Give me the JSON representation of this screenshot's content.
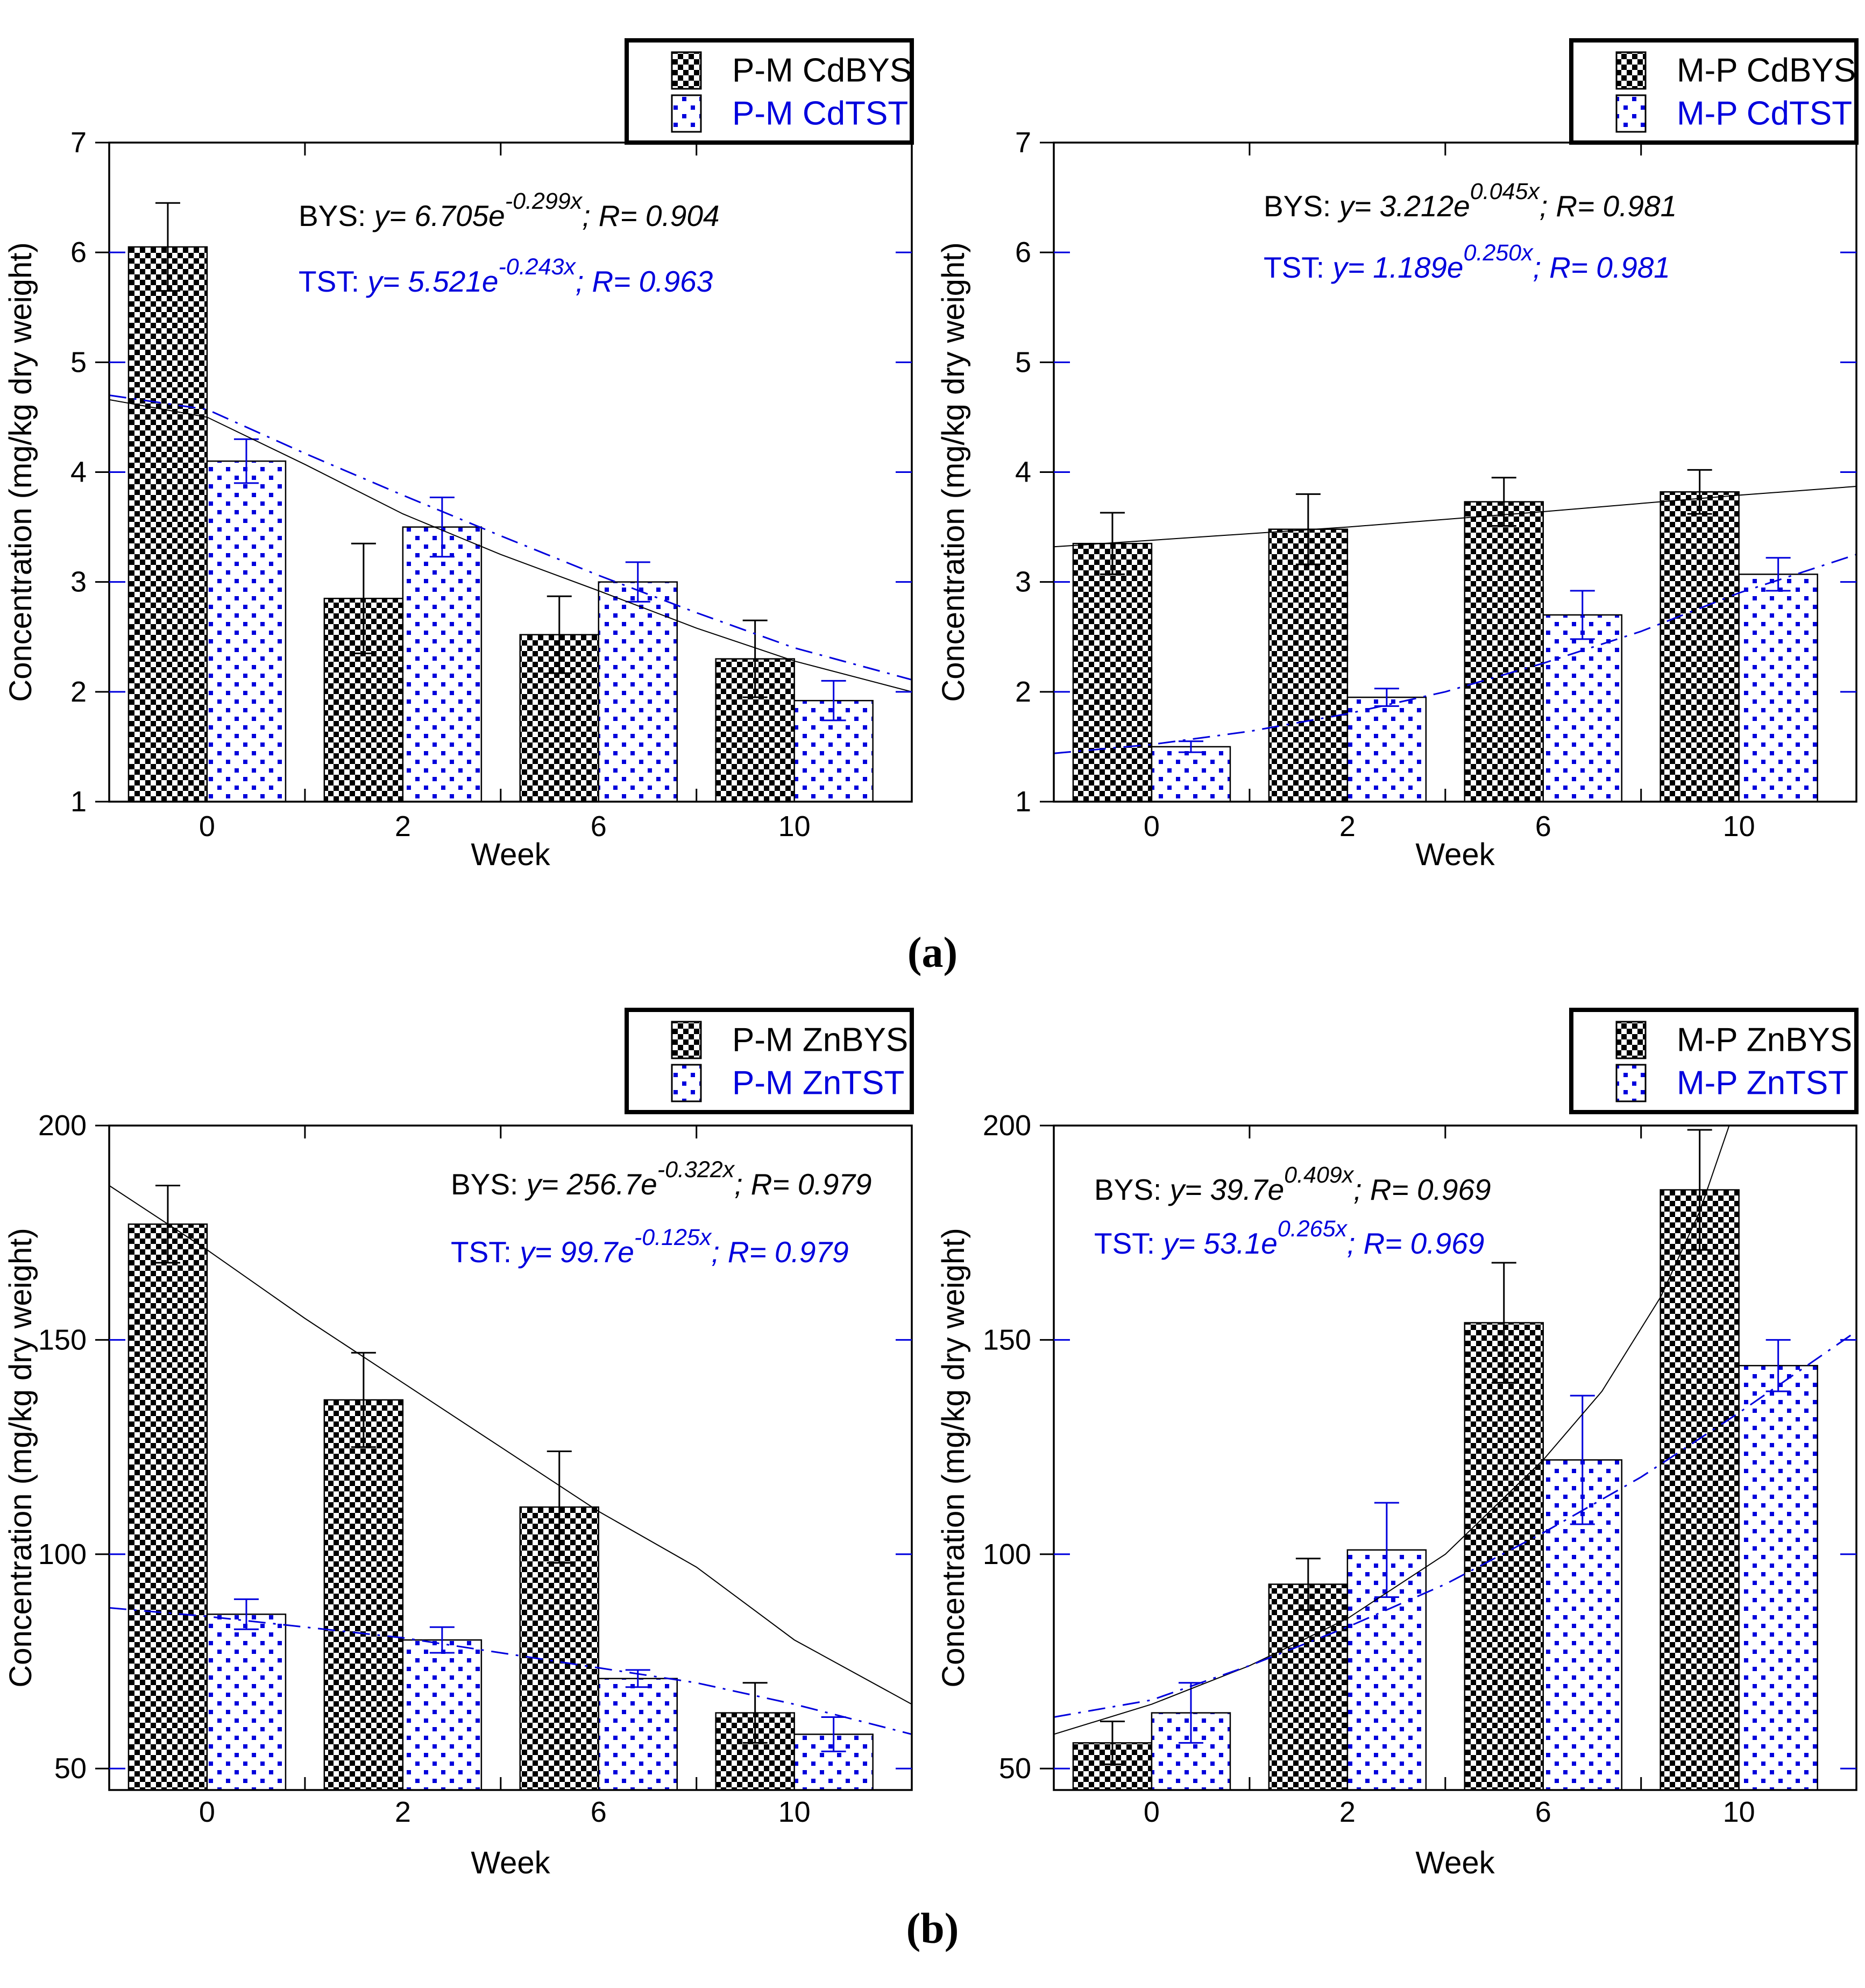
{
  "figure": {
    "panel_a_label": "(a)",
    "panel_b_label": "(b)"
  },
  "colors": {
    "bys": "#000000",
    "tst": "#0000dd"
  },
  "chart_data": [
    {
      "id": "pm-cd",
      "type": "bar",
      "ylabel": "Concentration (mg/kg dry weight)",
      "xlabel": "Week",
      "ylim": [
        1,
        7
      ],
      "yticks": [
        1,
        2,
        3,
        4,
        5,
        6,
        7
      ],
      "categories": [
        "0",
        "2",
        "6",
        "10"
      ],
      "legend_position": "top-right",
      "grid": false,
      "series": [
        {
          "key": "bys",
          "name": "P-M CdBYS",
          "color": "#000000",
          "pattern": "checker",
          "values": [
            6.05,
            2.85,
            2.52,
            2.3
          ],
          "errors": [
            0.4,
            0.5,
            0.35,
            0.35
          ],
          "trend_style": "solid",
          "trend": [
            [
              -0.5,
              4.66
            ],
            [
              0,
              4.5
            ],
            [
              0.5,
              4.07
            ],
            [
              1,
              3.62
            ],
            [
              1.5,
              3.25
            ],
            [
              2,
              2.92
            ],
            [
              2.5,
              2.58
            ],
            [
              3,
              2.28
            ],
            [
              3.6,
              2.0
            ]
          ]
        },
        {
          "key": "tst",
          "name": "P-M CdTST",
          "color": "#0000dd",
          "pattern": "dots",
          "values": [
            4.1,
            3.5,
            3.0,
            1.92
          ],
          "errors": [
            0.2,
            0.27,
            0.18,
            0.18
          ],
          "trend_style": "dashdot",
          "trend": [
            [
              -0.5,
              4.7
            ],
            [
              0,
              4.57
            ],
            [
              0.5,
              4.17
            ],
            [
              1,
              3.79
            ],
            [
              1.5,
              3.42
            ],
            [
              2,
              3.06
            ],
            [
              2.5,
              2.72
            ],
            [
              3,
              2.4
            ],
            [
              3.6,
              2.11
            ]
          ]
        }
      ],
      "equations": [
        {
          "prefix": "BYS:  ",
          "body": "y= 6.705e",
          "exp": "-0.299x",
          "suffix": "; R= 0.904",
          "color": "#000000"
        },
        {
          "prefix": "TST:  ",
          "body": "y= 5.521e",
          "exp": "-0.243x",
          "suffix": "; R= 0.963",
          "color": "#0000dd"
        }
      ]
    },
    {
      "id": "mp-cd",
      "type": "bar",
      "ylabel": "Concentration (mg/kg dry weight)",
      "xlabel": "Week",
      "ylim": [
        1,
        7
      ],
      "yticks": [
        1,
        2,
        3,
        4,
        5,
        6,
        7
      ],
      "categories": [
        "0",
        "2",
        "6",
        "10"
      ],
      "legend_position": "top-right",
      "grid": false,
      "series": [
        {
          "key": "bys",
          "name": "M-P CdBYS",
          "color": "#000000",
          "pattern": "checker",
          "values": [
            3.35,
            3.48,
            3.73,
            3.82
          ],
          "errors": [
            0.28,
            0.32,
            0.22,
            0.2
          ],
          "trend_style": "solid",
          "trend": [
            [
              -0.5,
              3.32
            ],
            [
              0,
              3.38
            ],
            [
              1,
              3.5
            ],
            [
              2,
              3.64
            ],
            [
              3,
              3.79
            ],
            [
              3.6,
              3.87
            ]
          ]
        },
        {
          "key": "tst",
          "name": "M-P CdTST",
          "color": "#0000dd",
          "pattern": "dots",
          "values": [
            1.5,
            1.95,
            2.7,
            3.07
          ],
          "errors": [
            0.05,
            0.08,
            0.22,
            0.15
          ],
          "trend_style": "dashdot",
          "trend": [
            [
              -0.5,
              1.44
            ],
            [
              0,
              1.52
            ],
            [
              0.5,
              1.64
            ],
            [
              1,
              1.8
            ],
            [
              1.5,
              2.0
            ],
            [
              2,
              2.26
            ],
            [
              2.5,
              2.55
            ],
            [
              3,
              2.9
            ],
            [
              3.6,
              3.25
            ]
          ]
        }
      ],
      "equations": [
        {
          "prefix": "BYS:  ",
          "body": "y= 3.212e",
          "exp": "0.045x",
          "suffix": "; R= 0.981",
          "color": "#000000"
        },
        {
          "prefix": "TST:  ",
          "body": "y= 1.189e",
          "exp": "0.250x",
          "suffix": "; R= 0.981",
          "color": "#0000dd"
        }
      ]
    },
    {
      "id": "pm-zn",
      "type": "bar",
      "ylabel": "Concentration (mg/kg dry weight)",
      "xlabel": "Week",
      "ylim": [
        45,
        200
      ],
      "yticks": [
        50,
        100,
        150,
        200
      ],
      "categories": [
        "0",
        "2",
        "6",
        "10"
      ],
      "legend_position": "top-right",
      "grid": false,
      "series": [
        {
          "key": "bys",
          "name": "P-M ZnBYS",
          "color": "#000000",
          "pattern": "checker",
          "values": [
            177,
            136,
            111,
            63
          ],
          "errors": [
            9,
            11,
            13,
            7
          ],
          "trend_style": "solid",
          "trend": [
            [
              -0.5,
              186
            ],
            [
              0,
              171
            ],
            [
              0.5,
              155
            ],
            [
              1,
              140
            ],
            [
              1.5,
              125
            ],
            [
              2,
              110
            ],
            [
              2.5,
              97
            ],
            [
              3,
              80
            ],
            [
              3.6,
              65
            ]
          ]
        },
        {
          "key": "tst",
          "name": "P-M ZnTST",
          "color": "#0000dd",
          "pattern": "dots",
          "values": [
            86,
            80,
            71,
            58
          ],
          "errors": [
            3.5,
            3,
            2,
            4
          ],
          "trend_style": "dashdot",
          "trend": [
            [
              -0.5,
              87.5
            ],
            [
              0,
              85.5
            ],
            [
              0.5,
              83
            ],
            [
              1,
              80.5
            ],
            [
              1.5,
              77
            ],
            [
              2,
              73.5
            ],
            [
              2.5,
              70
            ],
            [
              3,
              65
            ],
            [
              3.6,
              58
            ]
          ]
        }
      ],
      "equations": [
        {
          "prefix": "BYS:  ",
          "body": "y= 256.7e",
          "exp": "-0.322x",
          "suffix": "; R= 0.979",
          "color": "#000000"
        },
        {
          "prefix": "TST:  ",
          "body": "y= 99.7e",
          "exp": "-0.125x",
          "suffix": "; R= 0.979",
          "color": "#0000dd"
        }
      ]
    },
    {
      "id": "mp-zn",
      "type": "bar",
      "ylabel": "Concentration (mg/kg dry weight)",
      "xlabel": "Week",
      "ylim": [
        45,
        200
      ],
      "yticks": [
        50,
        100,
        150,
        200
      ],
      "categories": [
        "0",
        "2",
        "6",
        "10"
      ],
      "legend_position": "top-right",
      "grid": false,
      "series": [
        {
          "key": "bys",
          "name": "M-P ZnBYS",
          "color": "#000000",
          "pattern": "checker",
          "values": [
            56,
            93,
            154,
            185
          ],
          "errors": [
            5,
            6,
            14,
            14
          ],
          "trend_style": "solid",
          "trend": [
            [
              -0.5,
              58
            ],
            [
              0,
              65
            ],
            [
              0.5,
              74
            ],
            [
              1,
              85
            ],
            [
              1.5,
              100
            ],
            [
              2,
              122
            ],
            [
              2.3,
              138
            ],
            [
              2.6,
              160
            ],
            [
              2.8,
              180
            ],
            [
              2.95,
              200
            ]
          ]
        },
        {
          "key": "tst",
          "name": "M-P ZnTST",
          "color": "#0000dd",
          "pattern": "dots",
          "values": [
            63,
            101,
            122,
            144
          ],
          "errors": [
            7,
            11,
            15,
            6
          ],
          "trend_style": "dashdot",
          "trend": [
            [
              -0.5,
              62
            ],
            [
              0,
              66
            ],
            [
              0.5,
              74
            ],
            [
              1,
              83
            ],
            [
              1.5,
              93
            ],
            [
              2,
              105
            ],
            [
              2.5,
              118
            ],
            [
              3,
              133
            ],
            [
              3.6,
              152
            ]
          ]
        }
      ],
      "equations": [
        {
          "prefix": "BYS:  ",
          "body": "y= 39.7e",
          "exp": "0.409x",
          "suffix": "; R= 0.969",
          "color": "#000000"
        },
        {
          "prefix": "TST:  ",
          "body": "y= 53.1e",
          "exp": "0.265x",
          "suffix": "; R= 0.969",
          "color": "#0000dd"
        }
      ]
    }
  ]
}
